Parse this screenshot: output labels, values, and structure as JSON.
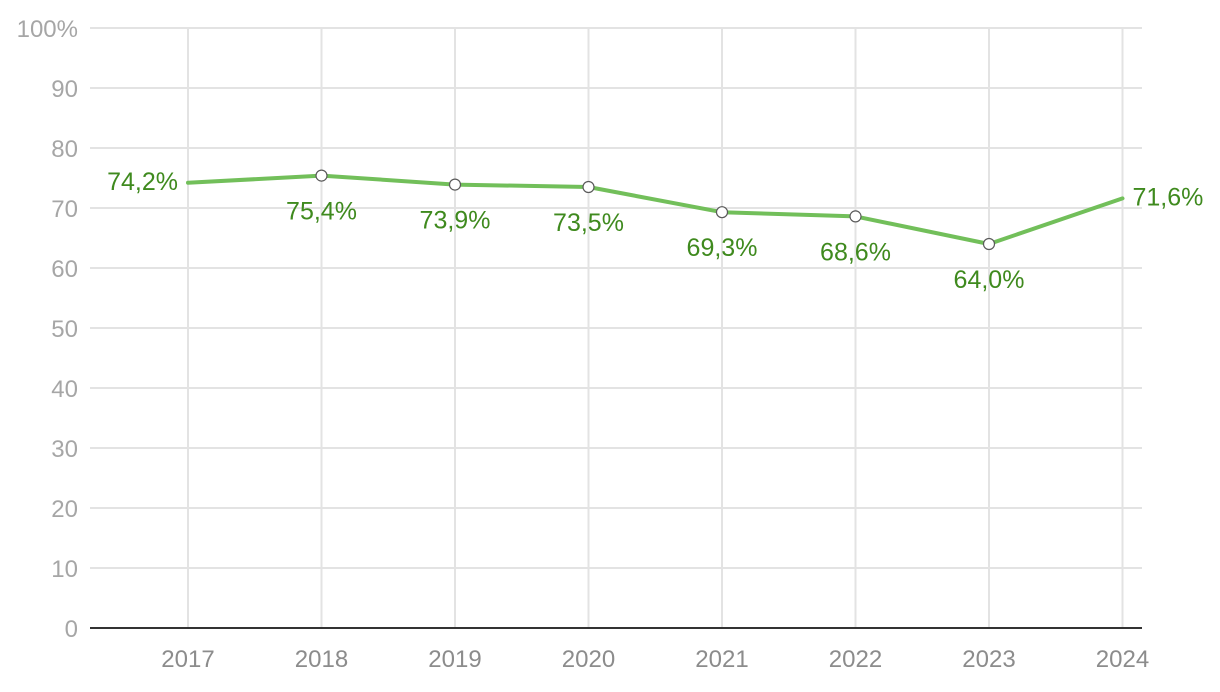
{
  "chart_data": {
    "type": "line",
    "categories": [
      "2017",
      "2018",
      "2019",
      "2020",
      "2021",
      "2022",
      "2023",
      "2024"
    ],
    "series": [
      {
        "values": [
          74.2,
          75.4,
          73.9,
          73.5,
          69.3,
          68.6,
          64.0,
          71.6
        ],
        "labels": [
          "74,2%",
          "75,4%",
          "73,9%",
          "73,5%",
          "69,3%",
          "68,6%",
          "64,0%",
          "71,6%"
        ],
        "color": "#72bf5a",
        "label_color": "#3f8a1e"
      }
    ],
    "yticks": [
      0,
      10,
      20,
      30,
      40,
      50,
      60,
      70,
      80,
      90,
      100
    ],
    "ytick_labels": [
      "0",
      "10",
      "20",
      "30",
      "40",
      "50",
      "60",
      "70",
      "80",
      "90",
      "100%"
    ],
    "ylim": [
      0,
      100
    ],
    "grid": true,
    "grid_color": "#e3e3e3",
    "axis_color": "#333333",
    "title": "",
    "xlabel": "",
    "ylabel": ""
  }
}
